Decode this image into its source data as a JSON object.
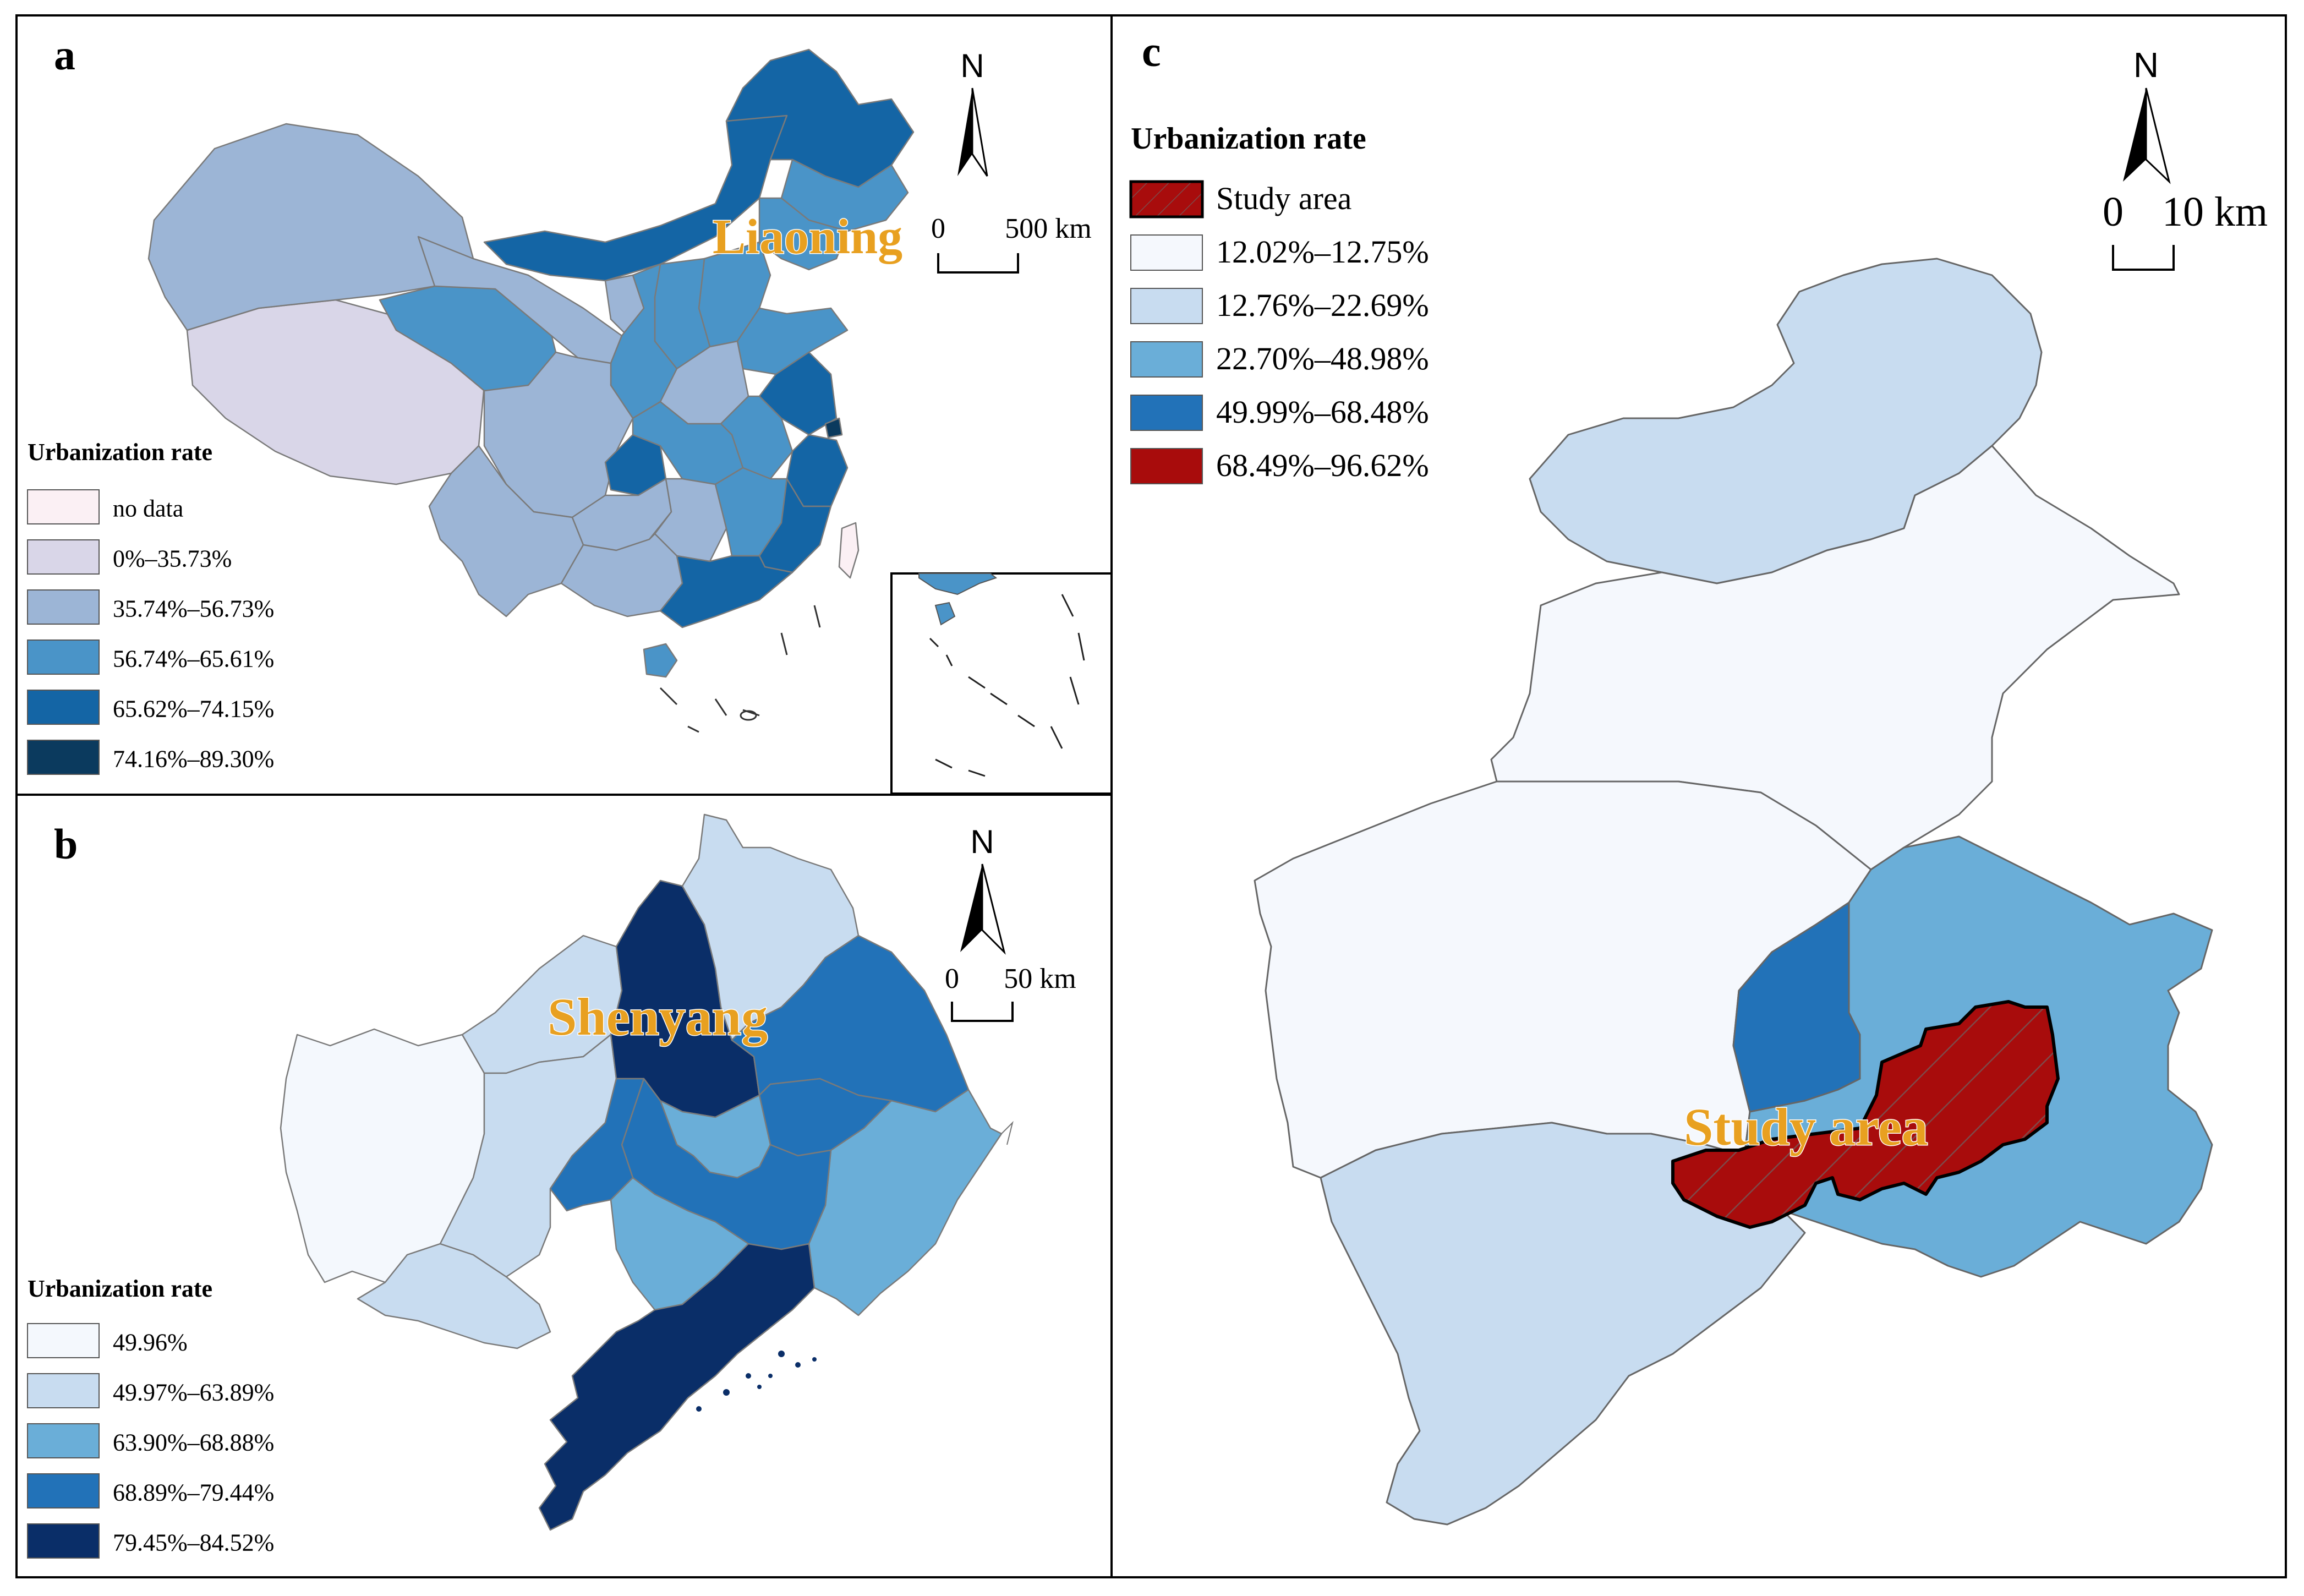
{
  "panels": {
    "a": {
      "letter": "a",
      "north": "N",
      "scale": {
        "zero": "0",
        "label": "500 km"
      },
      "place_label": "Liaoning",
      "legend": {
        "title": "Urbanization rate",
        "items": [
          {
            "label": "no data",
            "color": "#FBF0F4"
          },
          {
            "label": "0%–35.73%",
            "color": "#D9D6E8"
          },
          {
            "label": "35.74%–56.73%",
            "color": "#9CB5D6"
          },
          {
            "label": "56.74%–65.61%",
            "color": "#4A94C8"
          },
          {
            "label": "65.62%–74.15%",
            "color": "#1465A5"
          },
          {
            "label": "74.16%–89.30%",
            "color": "#0B3A5E"
          }
        ]
      }
    },
    "b": {
      "letter": "b",
      "north": "N",
      "scale": {
        "zero": "0",
        "label": "50 km"
      },
      "place_label": "Shenyang",
      "legend": {
        "title": "Urbanization rate",
        "items": [
          {
            "label": "49.96%",
            "color": "#F4F8FD"
          },
          {
            "label": "49.97%–63.89%",
            "color": "#C8DCF0"
          },
          {
            "label": "63.90%–68.88%",
            "color": "#6AAED8"
          },
          {
            "label": "68.89%–79.44%",
            "color": "#2272B8"
          },
          {
            "label": "79.45%–84.52%",
            "color": "#0A2E68"
          }
        ]
      }
    },
    "c": {
      "letter": "c",
      "north": "N",
      "scale": {
        "zero": "0",
        "label": "10 km"
      },
      "place_label": "Study area",
      "legend": {
        "title": "Urbanization rate",
        "items": [
          {
            "label": "Study area",
            "color": "#A80C0C",
            "hatched": true
          },
          {
            "label": "12.02%–12.75%",
            "color": "#F5F8FD"
          },
          {
            "label": "12.76%–22.69%",
            "color": "#C8DCF0"
          },
          {
            "label": "22.70%–48.98%",
            "color": "#6AAED8"
          },
          {
            "label": "49.99%–68.48%",
            "color": "#2272B8"
          },
          {
            "label": "68.49%–96.62%",
            "color": "#A80C0C"
          }
        ]
      }
    }
  }
}
